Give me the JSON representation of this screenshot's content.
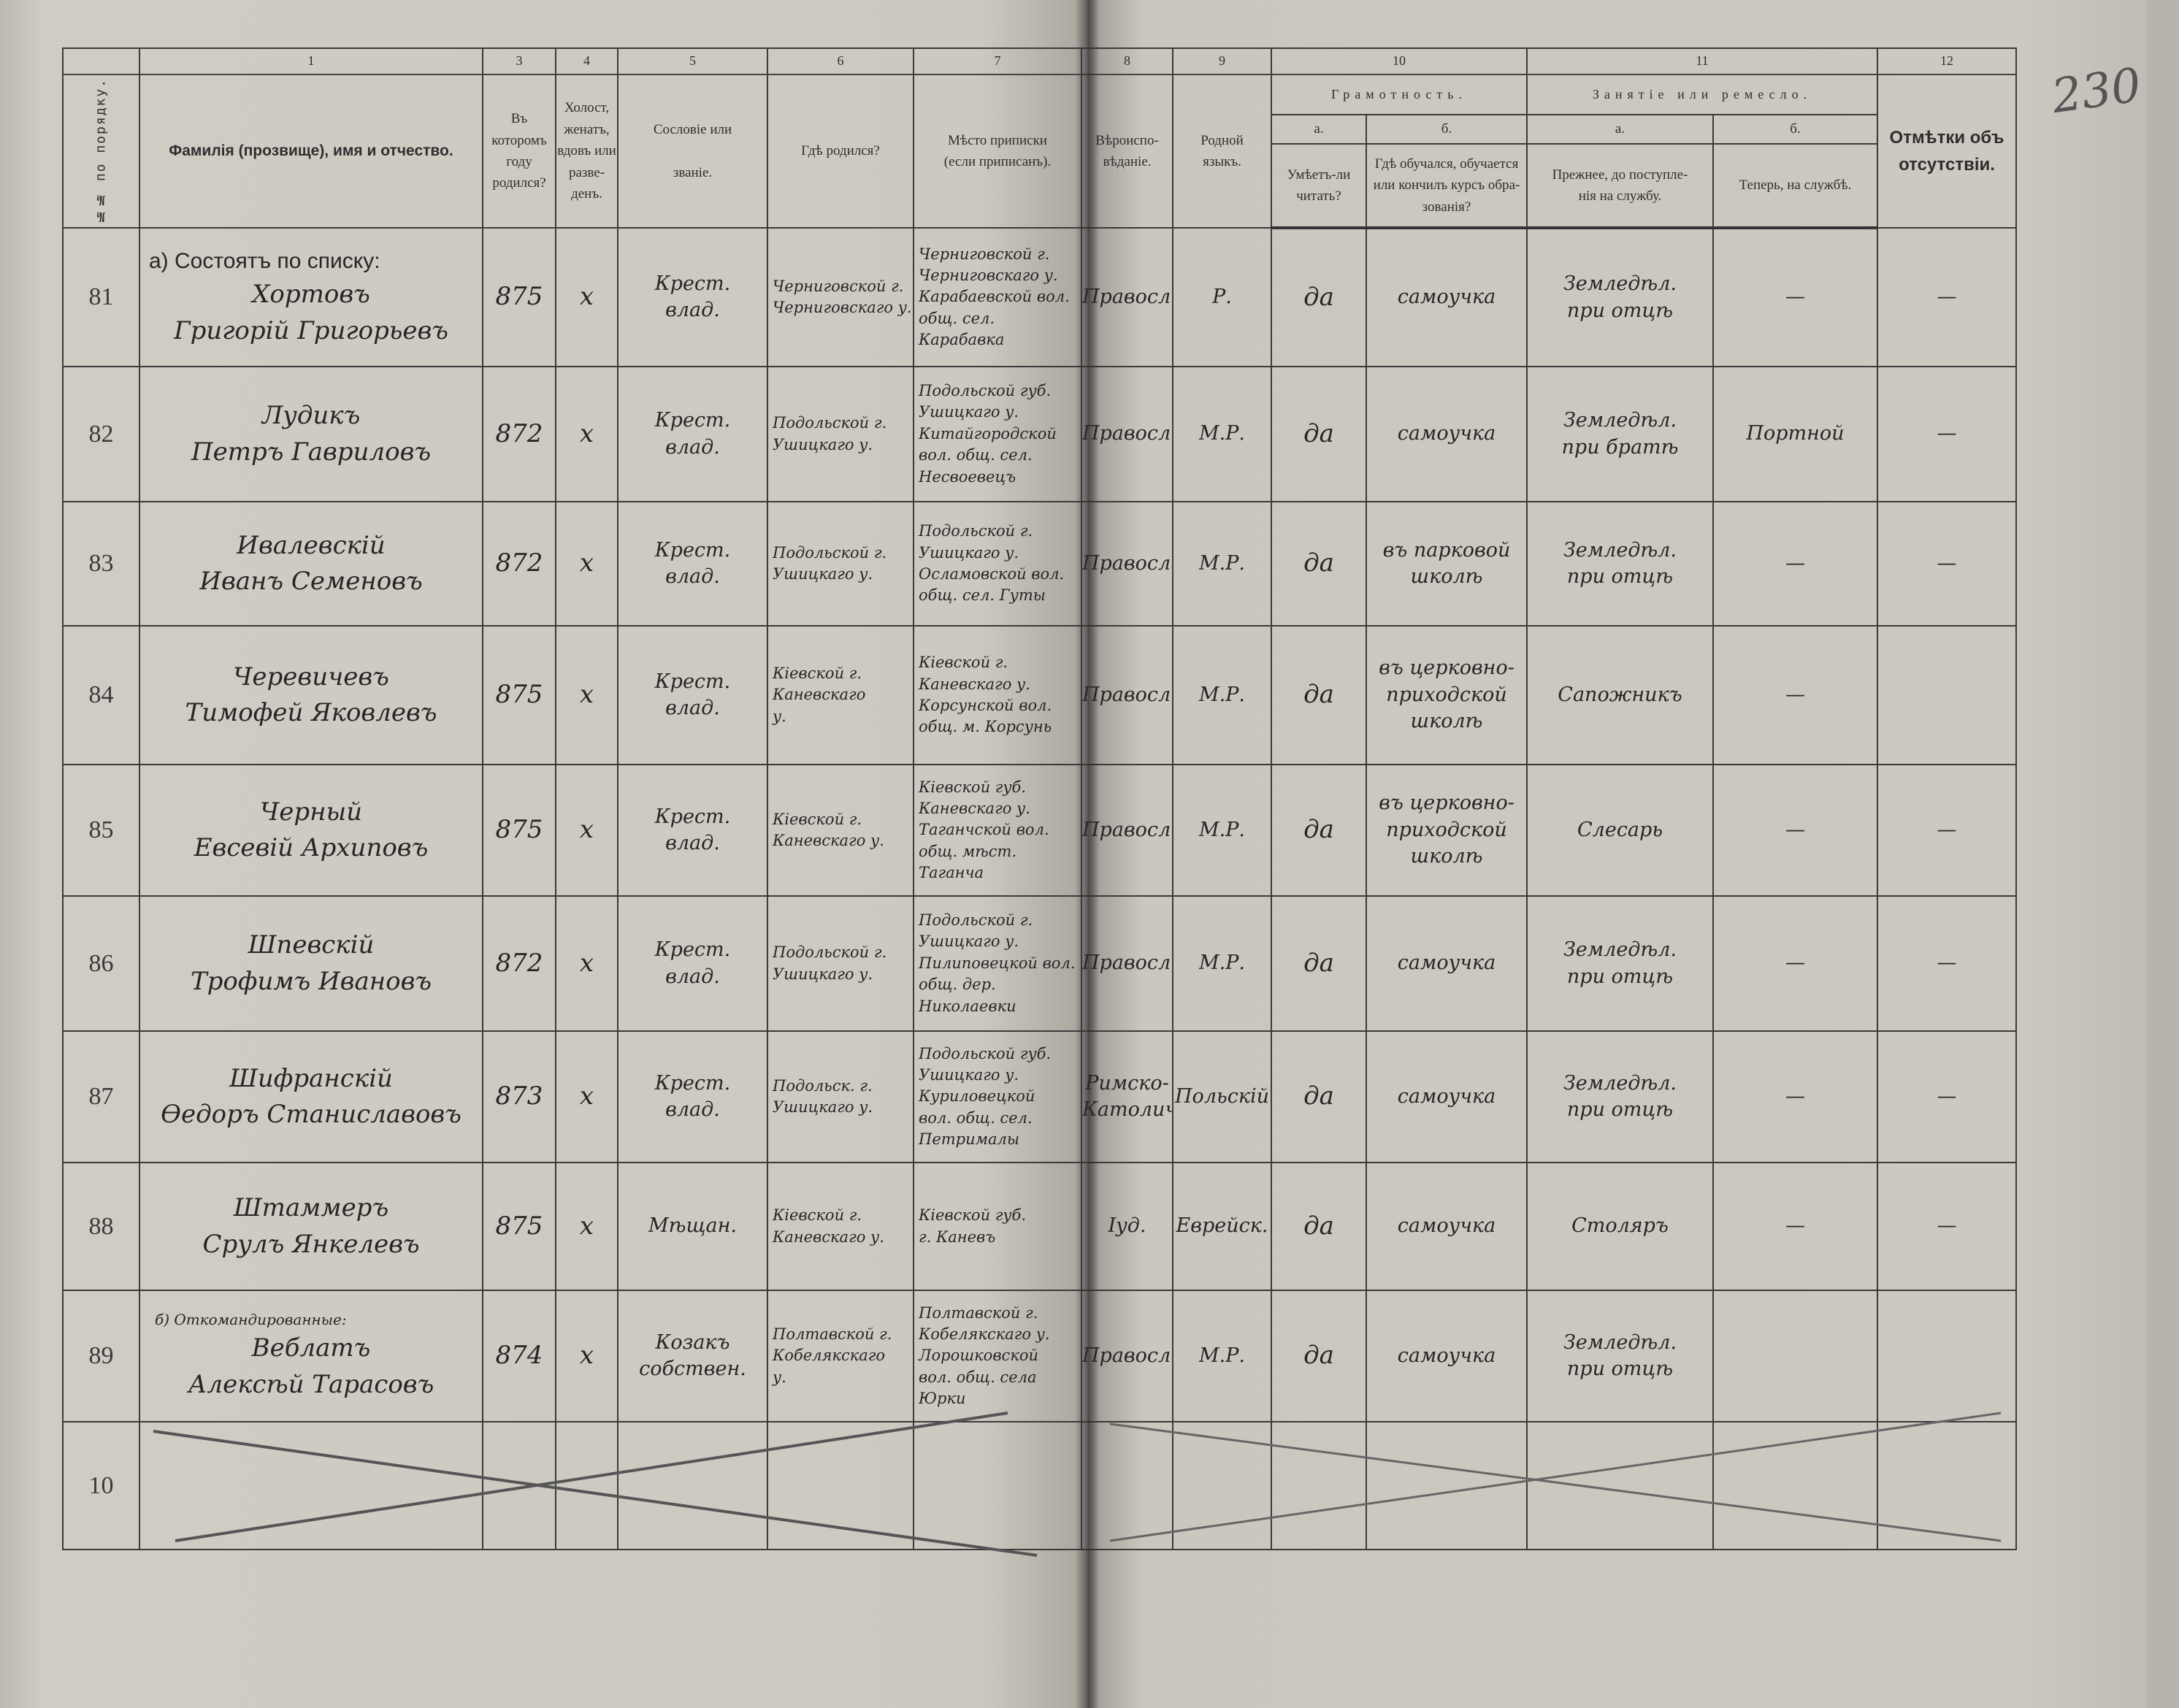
{
  "margin_mark": "230",
  "header": {
    "colnums": [
      "1",
      "3",
      "4",
      "5",
      "6",
      "7",
      "8",
      "9",
      "10",
      "11",
      "12"
    ],
    "num_col": "№№ по порядку.",
    "name": "Фамилія (прозвище), имя и отчество.",
    "year": "Въ\nкоторомъ\nгоду\nродился?",
    "marital": "Холост,\nженатъ,\nвдовъ или\nразве-\nденъ.",
    "estate": "Сословіе или\n\nзваніе.",
    "birthplace": "Гдѣ родился?",
    "registry": "Мѣсто приписки\n(если приписанъ).",
    "religion": "Вѣроиспо-\nвѣданіе.",
    "language": "Родной\nязыкъ.",
    "literacy": "Грамотность.",
    "literacy_a_letter": "а.",
    "literacy_b_letter": "б.",
    "literacy_a": "Умѣетъ-ли\nчитать?",
    "literacy_b": "Гдѣ обучался, обучается\nили кончилъ курсъ обра-\nзованія?",
    "occupation": "Занятіе или ремесло.",
    "occupation_a_letter": "а.",
    "occupation_b_letter": "б.",
    "occupation_a": "Прежнее, до поступле-\nнія на службу.",
    "occupation_b": "Теперь, на службѣ.",
    "remarks": "Отмѣтки объ\nотсутствіи."
  },
  "rows": [
    {
      "num": "81",
      "section": "а) Состоятъ по списку:",
      "name": "Хортовъ\nГригорій Григорьевъ",
      "year": "875",
      "marital": "х",
      "estate": "Крест.\nвлад.",
      "birthplace": "Черниговской г.\nЧерниговскаго у.",
      "registry": "Черниговской г.\nЧерниговскаго у.\nКарабаевской вол.\nобщ. сел. Карабавка",
      "religion": "Правосл.",
      "language": "Р.",
      "can_read": "да",
      "schooling": "самоучка",
      "prev_occupation": "Земледѣл.\nпри отцѣ",
      "curr_occupation": "—",
      "remarks": "—"
    },
    {
      "num": "82",
      "section": "",
      "name": "Лудикъ\nПетръ Гавриловъ",
      "year": "872",
      "marital": "х",
      "estate": "Крест.\nвлад.",
      "birthplace": "Подольской г.\nУшицкаго у.",
      "registry": "Подольской губ.\nУшицкаго у.\nКитайгородской\nвол. общ. сел.\nНесвоевецъ",
      "religion": "Правосл.",
      "language": "М.Р.",
      "can_read": "да",
      "schooling": "самоучка",
      "prev_occupation": "Земледѣл.\nпри братѣ",
      "curr_occupation": "Портной",
      "remarks": "—"
    },
    {
      "num": "83",
      "section": "",
      "name": "Ивалевскій\nИванъ Семеновъ",
      "year": "872",
      "marital": "х",
      "estate": "Крест.\nвлад.",
      "birthplace": "Подольской г.\nУшицкаго у.",
      "registry": "Подольской г.\nУшицкаго у.\nОсламовской вол.\nобщ. сел. Гуты",
      "religion": "Правосл.",
      "language": "М.Р.",
      "can_read": "да",
      "schooling": "въ парковой\nшколѣ",
      "prev_occupation": "Земледѣл.\nпри отцѣ",
      "curr_occupation": "—",
      "remarks": "—"
    },
    {
      "num": "84",
      "section": "",
      "name": "Черевичевъ\nТимофей Яковлевъ",
      "year": "875",
      "marital": "х",
      "estate": "Крест.\nвлад.",
      "birthplace": "Кіевской г.\nКаневскаго\nу.",
      "registry": "Кіевской г.\nКаневскаго у.\nКорсунской вол.\nобщ. м. Корсунь",
      "religion": "Правосл.",
      "language": "М.Р.",
      "can_read": "да",
      "schooling": "въ церковно-\nприходской\nшколѣ",
      "prev_occupation": "Сапожникъ",
      "curr_occupation": "—",
      "remarks": ""
    },
    {
      "num": "85",
      "section": "",
      "name": "Черный\nЕвсевій Архиповъ",
      "year": "875",
      "marital": "х",
      "estate": "Крест.\nвлад.",
      "birthplace": "Кіевской г.\nКаневскаго у.",
      "registry": "Кіевской губ.\nКаневскаго у.\nТаганчской вол.\nобщ. мѣст. Таганча",
      "religion": "Правосл.",
      "language": "М.Р.",
      "can_read": "да",
      "schooling": "въ церковно-\nприходской\nшколѣ",
      "prev_occupation": "Слесарь",
      "curr_occupation": "—",
      "remarks": "—"
    },
    {
      "num": "86",
      "section": "",
      "name": "Шпевскій\nТрофимъ Ивановъ",
      "year": "872",
      "marital": "х",
      "estate": "Крест.\nвлад.",
      "birthplace": "Подольской г.\nУшицкаго у.",
      "registry": "Подольской г.\nУшицкаго у.\nПилиповецкой вол.\nобщ. дер. Николаевки",
      "religion": "Правосл.",
      "language": "М.Р.",
      "can_read": "да",
      "schooling": "самоучка",
      "prev_occupation": "Земледѣл.\nпри отцѣ",
      "curr_occupation": "—",
      "remarks": "—"
    },
    {
      "num": "87",
      "section": "",
      "name": "Шифранскій\nѲедоръ Станиславовъ",
      "year": "873",
      "marital": "х",
      "estate": "Крест.\nвлад.",
      "birthplace": "Подольск. г.\nУшицкаго у.",
      "registry": "Подольской губ.\nУшицкаго у.\nКуриловецкой\nвол. общ. сел.\nПетрималы",
      "religion": "Римско-\nКатолич.",
      "language": "Польскій",
      "can_read": "да",
      "schooling": "самоучка",
      "prev_occupation": "Земледѣл.\nпри отцѣ",
      "curr_occupation": "—",
      "remarks": "—"
    },
    {
      "num": "88",
      "section": "",
      "name": "Штаммеръ\nСрулъ Янкелевъ",
      "year": "875",
      "marital": "х",
      "estate": "Мѣщан.",
      "birthplace": "Кіевской г.\nКаневскаго у.",
      "registry": "Кіевской губ.\nг. Каневъ",
      "religion": "Іуд.",
      "language": "Еврейск.",
      "can_read": "да",
      "schooling": "самоучка",
      "prev_occupation": "Столяръ",
      "curr_occupation": "—",
      "remarks": "—"
    },
    {
      "num": "89",
      "section": "б) Откомандированные:",
      "name": "Веблатъ\nАлексѣй Тарасовъ",
      "year": "874",
      "marital": "х",
      "estate": "Козакъ\nсобствен.",
      "birthplace": "Полтавской г.\nКобелякскаго\nу.",
      "registry": "Полтавской г.\nКобелякскаго у.\nЛорошковской\nвол. общ. села Юрки",
      "religion": "Правосл.",
      "language": "М.Р.",
      "can_read": "да",
      "schooling": "самоучка",
      "prev_occupation": "Земледѣл.\nпри отцѣ",
      "curr_occupation": "",
      "remarks": ""
    },
    {
      "num": "10",
      "section": "",
      "name": "",
      "year": "",
      "marital": "",
      "estate": "",
      "birthplace": "",
      "registry": "",
      "religion": "",
      "language": "",
      "can_read": "",
      "schooling": "",
      "prev_occupation": "",
      "curr_occupation": "",
      "remarks": ""
    }
  ]
}
